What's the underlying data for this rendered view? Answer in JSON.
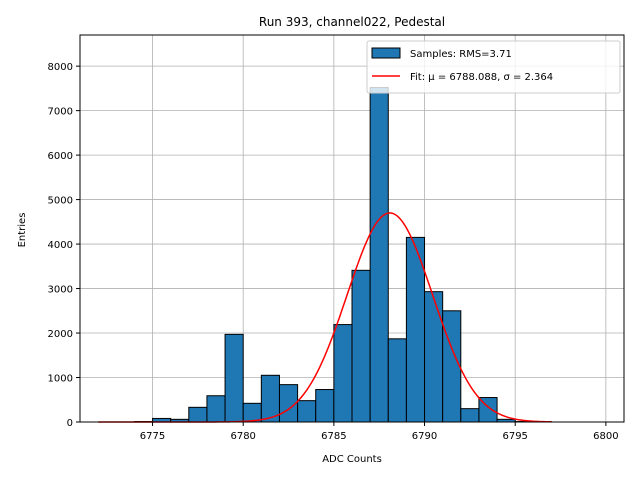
{
  "chart_data": {
    "type": "bar",
    "title": "Run 393, channel022, Pedestal",
    "xlabel": "ADC Counts",
    "ylabel": "Entries",
    "xlim": [
      6771,
      6801
    ],
    "ylim": [
      0,
      8700
    ],
    "xticks": [
      6775,
      6780,
      6785,
      6790,
      6795,
      6800
    ],
    "yticks": [
      0,
      1000,
      2000,
      3000,
      4000,
      5000,
      6000,
      7000,
      8000
    ],
    "grid": true,
    "legend_position": "top-right",
    "histogram": {
      "name": "Samples: RMS=3.71",
      "color": "#1f77b4",
      "bin_width": 1,
      "bins": [
        {
          "x0": 6774,
          "value": 10
        },
        {
          "x0": 6775,
          "value": 80
        },
        {
          "x0": 6776,
          "value": 60
        },
        {
          "x0": 6777,
          "value": 330
        },
        {
          "x0": 6778,
          "value": 590
        },
        {
          "x0": 6779,
          "value": 1970
        },
        {
          "x0": 6780,
          "value": 420
        },
        {
          "x0": 6781,
          "value": 1050
        },
        {
          "x0": 6782,
          "value": 840
        },
        {
          "x0": 6783,
          "value": 480
        },
        {
          "x0": 6784,
          "value": 730
        },
        {
          "x0": 6785,
          "value": 2190
        },
        {
          "x0": 6786,
          "value": 3410
        },
        {
          "x0": 6787,
          "value": 7520
        },
        {
          "x0": 6788,
          "value": 1870
        },
        {
          "x0": 6789,
          "value": 4150
        },
        {
          "x0": 6790,
          "value": 2930
        },
        {
          "x0": 6791,
          "value": 2500
        },
        {
          "x0": 6792,
          "value": 300
        },
        {
          "x0": 6793,
          "value": 550
        },
        {
          "x0": 6794,
          "value": 60
        },
        {
          "x0": 6795,
          "value": 10
        },
        {
          "x0": 6796,
          "value": 5
        }
      ]
    },
    "fit": {
      "name": "Fit: μ = 6788.088, σ = 2.364",
      "color": "#ff0000",
      "mu": 6788.088,
      "sigma": 2.364,
      "amplitude": 4700,
      "x_range": [
        6772,
        6797
      ]
    }
  }
}
